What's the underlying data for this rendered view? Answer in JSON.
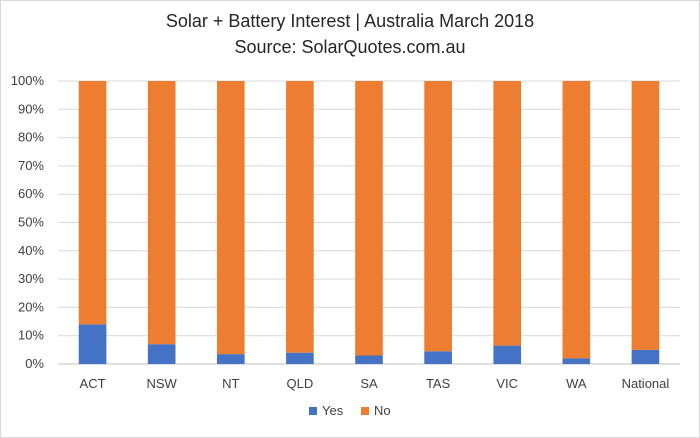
{
  "chart_data": {
    "type": "bar",
    "stacked": true,
    "title": "Solar + Battery Interest | Australia March 2018",
    "subtitle": "Source: SolarQuotes.com.au",
    "categories": [
      "ACT",
      "NSW",
      "NT",
      "QLD",
      "SA",
      "TAS",
      "VIC",
      "WA",
      "National"
    ],
    "series": [
      {
        "name": "Yes",
        "color": "#4472c4",
        "values": [
          14,
          7,
          3.5,
          4,
          3,
          4.5,
          6.5,
          2,
          5
        ]
      },
      {
        "name": "No",
        "color": "#ed7d31",
        "values": [
          86,
          93,
          96.5,
          96,
          97,
          95.5,
          93.5,
          98,
          95
        ]
      }
    ],
    "ylim": [
      0,
      100
    ],
    "yticks": [
      "0%",
      "10%",
      "20%",
      "30%",
      "40%",
      "50%",
      "60%",
      "70%",
      "80%",
      "90%",
      "100%"
    ],
    "grid": true,
    "legend": "bottom-center"
  }
}
